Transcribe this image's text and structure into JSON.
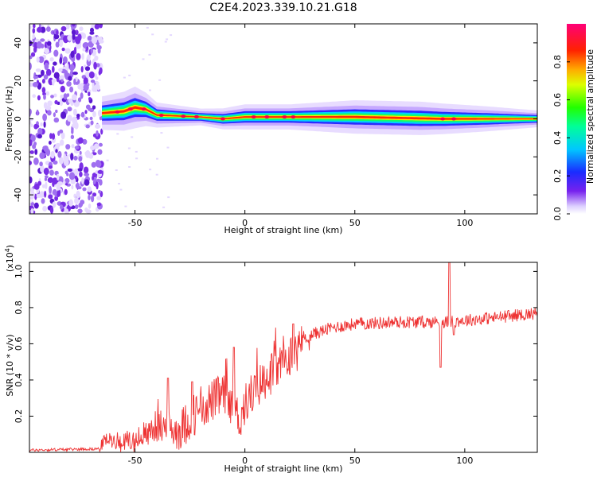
{
  "figure": {
    "title": "C2E4.2023.339.10.21.G18"
  },
  "chart_data": [
    {
      "type": "heatmap",
      "xlabel": "Height of straight line (km)",
      "ylabel": "Frequency (Hz)",
      "xlim": [
        -98,
        133
      ],
      "ylim": [
        -50,
        50
      ],
      "xticks": [
        -50,
        0,
        50,
        100
      ],
      "yticks": [
        -40,
        -20,
        0,
        20,
        40
      ],
      "colorbar": {
        "label": "Normalized spectral amplitude",
        "range": [
          0,
          1
        ],
        "ticks": [
          "0.0",
          "0.2",
          "0.4",
          "0.6",
          "0.8"
        ],
        "colormap": "rainbow (white → purple → blue → cyan → green → yellow → red → magenta)"
      },
      "noise_region_x": [
        -98,
        -65
      ],
      "band_center": [
        {
          "x": -65,
          "y": 3
        },
        {
          "x": -55,
          "y": 4
        },
        {
          "x": -50,
          "y": 6
        },
        {
          "x": -45,
          "y": 5
        },
        {
          "x": -40,
          "y": 2
        },
        {
          "x": -20,
          "y": 1
        },
        {
          "x": -10,
          "y": 0
        },
        {
          "x": 0,
          "y": 1
        },
        {
          "x": 20,
          "y": 1
        },
        {
          "x": 50,
          "y": 1
        },
        {
          "x": 90,
          "y": 0
        },
        {
          "x": 133,
          "y": 0
        }
      ],
      "band_halfwidth": [
        {
          "x": -65,
          "y": 4
        },
        {
          "x": -50,
          "y": 5
        },
        {
          "x": -40,
          "y": 3
        },
        {
          "x": -20,
          "y": 2
        },
        {
          "x": 0,
          "y": 3
        },
        {
          "x": 20,
          "y": 3
        },
        {
          "x": 50,
          "y": 4
        },
        {
          "x": 80,
          "y": 4
        },
        {
          "x": 110,
          "y": 3
        },
        {
          "x": 133,
          "y": 2
        }
      ]
    },
    {
      "type": "line",
      "xlabel": "Height of straight line (km)",
      "ylabel": "SNR (10 * v/v)",
      "yscale_note": "(x10",
      "yscale_exp": "4",
      "yscale_close": ")",
      "xlim": [
        -98,
        133
      ],
      "ylim": [
        0,
        1.05
      ],
      "xticks": [
        -50,
        0,
        50,
        100
      ],
      "yticks": [
        0.2,
        0.4,
        0.6,
        0.8,
        1.0
      ],
      "color": "#ee3333",
      "trend": [
        {
          "x": -98,
          "y": 0.012
        },
        {
          "x": -66,
          "y": 0.02
        },
        {
          "x": -64,
          "y": 0.07
        },
        {
          "x": -50,
          "y": 0.06
        },
        {
          "x": -40,
          "y": 0.15
        },
        {
          "x": -30,
          "y": 0.12
        },
        {
          "x": -20,
          "y": 0.25
        },
        {
          "x": -10,
          "y": 0.32
        },
        {
          "x": -2,
          "y": 0.18
        },
        {
          "x": 0,
          "y": 0.28
        },
        {
          "x": 10,
          "y": 0.42
        },
        {
          "x": 20,
          "y": 0.52
        },
        {
          "x": 30,
          "y": 0.65
        },
        {
          "x": 40,
          "y": 0.69
        },
        {
          "x": 50,
          "y": 0.71
        },
        {
          "x": 70,
          "y": 0.72
        },
        {
          "x": 90,
          "y": 0.72
        },
        {
          "x": 110,
          "y": 0.74
        },
        {
          "x": 133,
          "y": 0.77
        }
      ],
      "spikes": [
        {
          "x": -35,
          "y": 0.41
        },
        {
          "x": -24,
          "y": 0.39
        },
        {
          "x": -5,
          "y": 0.58
        },
        {
          "x": 22,
          "y": 0.71
        },
        {
          "x": 89,
          "y": 0.47
        },
        {
          "x": 93,
          "y": 1.05
        },
        {
          "x": 95,
          "y": 0.65
        }
      ]
    }
  ]
}
